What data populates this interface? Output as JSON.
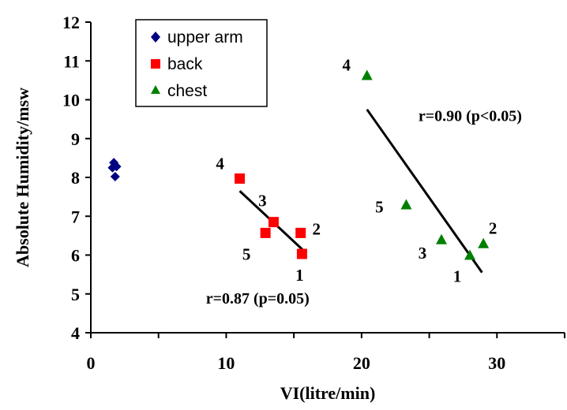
{
  "chart_data": {
    "type": "scatter",
    "xlabel": "VI(litre/min)",
    "ylabel": "Absolute Humidity/msw",
    "xlim": [
      0,
      35
    ],
    "ylim": [
      4,
      12
    ],
    "x_ticks": [
      "0",
      "10",
      "20",
      "30"
    ],
    "y_ticks": [
      "4",
      "5",
      "6",
      "7",
      "8",
      "9",
      "10",
      "11",
      "12"
    ],
    "legend_position": "top-left",
    "series": [
      {
        "name": "upper arm",
        "marker": "diamond",
        "color": "#000080",
        "points": [
          {
            "x": 1.7,
            "y": 8.38
          },
          {
            "x": 1.6,
            "y": 8.25
          },
          {
            "x": 1.9,
            "y": 8.28
          },
          {
            "x": 1.8,
            "y": 8.02
          }
        ]
      },
      {
        "name": "back",
        "marker": "square",
        "color": "#ff0000",
        "points": [
          {
            "x": 15.6,
            "y": 6.03,
            "label": "1"
          },
          {
            "x": 15.5,
            "y": 6.57,
            "label": "2"
          },
          {
            "x": 13.5,
            "y": 6.85,
            "label": "3"
          },
          {
            "x": 11.0,
            "y": 7.97,
            "label": "4"
          },
          {
            "x": 12.9,
            "y": 6.57,
            "label": "5"
          }
        ]
      },
      {
        "name": "chest",
        "marker": "triangle",
        "color": "#008000",
        "points": [
          {
            "x": 28.0,
            "y": 6.0,
            "label": "1"
          },
          {
            "x": 29.0,
            "y": 6.3,
            "label": "2"
          },
          {
            "x": 25.9,
            "y": 6.4,
            "label": "3"
          },
          {
            "x": 20.4,
            "y": 10.63,
            "label": "4"
          },
          {
            "x": 23.3,
            "y": 7.3,
            "label": "5"
          }
        ]
      }
    ],
    "trend_lines": [
      {
        "name": "back-fit",
        "x1": 11.0,
        "y1": 7.65,
        "x2": 15.7,
        "y2": 6.12
      },
      {
        "name": "chest-fit",
        "x1": 20.4,
        "y1": 9.75,
        "x2": 28.9,
        "y2": 5.55
      }
    ],
    "annotations": [
      {
        "text": "r=0.87 (p=0.05)",
        "x": 8.5,
        "y": 4.75
      },
      {
        "text": "r=0.90 (p<0.05)",
        "x": 24.2,
        "y": 9.45
      }
    ]
  }
}
